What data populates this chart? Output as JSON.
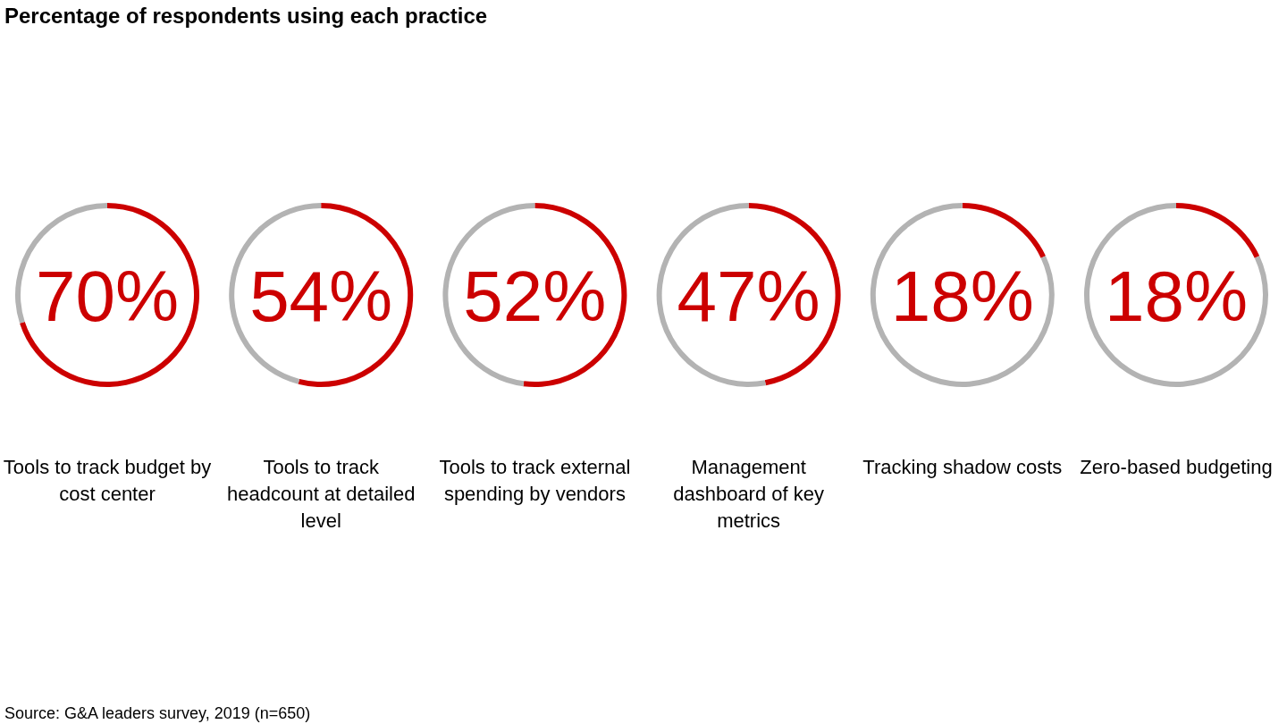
{
  "chart_data": [
    {
      "type": "donut",
      "title": "Percentage of respondents using each practice",
      "xlabel": "Tools to track budget by cost center",
      "categories": [
        null,
        null
      ],
      "values": [
        70,
        30
      ],
      "colors": [
        "#cc0000",
        "#b3b3b3"
      ],
      "value_labels": [
        "70%",
        null
      ]
    },
    {
      "type": "donut",
      "xlabel": "Tools to track headcount at detailed level",
      "categories": [
        null,
        null
      ],
      "values": [
        54,
        46
      ],
      "colors": [
        "#cc0000",
        "#b3b3b3"
      ],
      "value_labels": [
        "54%",
        null
      ]
    },
    {
      "type": "donut",
      "xlabel": "Tools to track external spending by vendors",
      "categories": [
        null,
        null
      ],
      "values": [
        52,
        48
      ],
      "colors": [
        "#cc0000",
        "#b3b3b3"
      ],
      "value_labels": [
        "52%",
        null
      ]
    },
    {
      "type": "donut",
      "xlabel": "Management dashboard of key metrics",
      "categories": [
        null,
        null
      ],
      "values": [
        47,
        53
      ],
      "colors": [
        "#cc0000",
        "#b3b3b3"
      ],
      "value_labels": [
        "47%",
        null
      ]
    },
    {
      "type": "donut",
      "xlabel": "Tracking shadow costs",
      "categories": [
        null,
        null
      ],
      "values": [
        18,
        82
      ],
      "colors": [
        "#cc0000",
        "#b3b3b3"
      ],
      "value_labels": [
        "18%",
        null
      ]
    },
    {
      "type": "donut",
      "xlabel": "Zero-based budgeting",
      "categories": [
        null,
        null
      ],
      "values": [
        18,
        82
      ],
      "colors": [
        "#cc0000",
        "#b3b3b3"
      ],
      "value_labels": [
        "18%",
        null
      ],
      "annotations": [
        "Source: G&A leaders survey, 2019 (n=650)"
      ]
    }
  ]
}
